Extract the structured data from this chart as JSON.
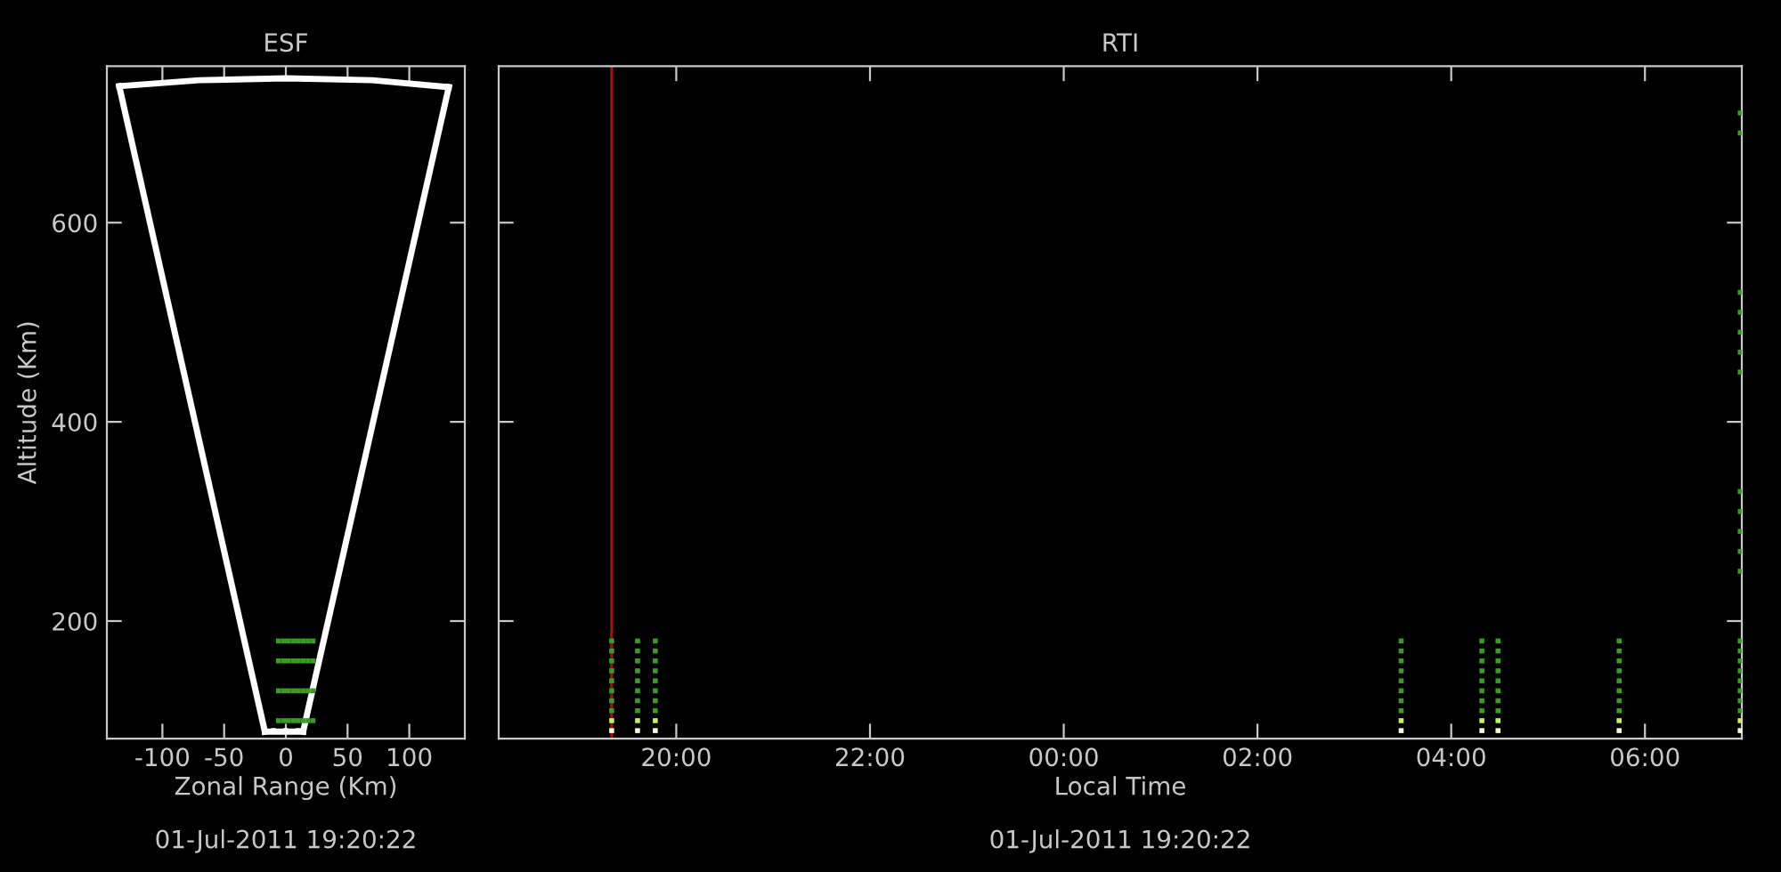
{
  "chart_data": [
    {
      "type": "scatter",
      "title": "ESF",
      "xlabel": "Zonal Range (Km)",
      "ylabel": "Altitude (Km)",
      "annotations": [
        "01-Jul-2011 19:20:22"
      ],
      "xlim": [
        -145,
        145
      ],
      "ylim": [
        82,
        757
      ],
      "xticks": [
        -100,
        -50,
        0,
        50,
        100
      ],
      "yticks": [
        200,
        400,
        600
      ],
      "grid": false,
      "legend": false,
      "marker": "square",
      "series": [
        {
          "type": "line",
          "marker": "none",
          "color": "#ffffff",
          "x": [
            -135,
            -17
          ],
          "values": [
            737,
            89
          ]
        },
        {
          "type": "line",
          "marker": "none",
          "color": "#ffffff",
          "x": [
            14,
            132
          ],
          "values": [
            89,
            736
          ]
        },
        {
          "type": "line",
          "marker": "none",
          "color": "#ffffff",
          "x": [
            -135,
            -70,
            0,
            70,
            132
          ],
          "values": [
            737,
            743,
            745,
            743,
            736
          ]
        },
        {
          "type": "line",
          "marker": "none",
          "color": "#ffffff",
          "x": [
            -17,
            14
          ],
          "values": [
            89,
            89
          ]
        },
        {
          "color": "#3c9a28",
          "x": [
            -6,
            -6,
            -6,
            -6,
            -2,
            -2,
            -2,
            -2,
            2,
            2,
            2,
            2,
            6,
            6,
            6,
            6,
            10,
            10,
            10,
            10,
            14,
            14,
            14,
            14,
            18,
            18,
            18,
            18,
            22,
            22,
            22,
            22
          ],
          "values": [
            100,
            130,
            160,
            180,
            100,
            130,
            160,
            180,
            100,
            130,
            160,
            180,
            100,
            130,
            160,
            180,
            100,
            130,
            160,
            180,
            100,
            130,
            160,
            180,
            100,
            130,
            160,
            180,
            100,
            130,
            160,
            180
          ]
        },
        {
          "color": "#ffffff",
          "x": [
            -10,
            0,
            10
          ],
          "values": [
            90,
            90,
            90
          ]
        }
      ]
    },
    {
      "type": "scatter",
      "title": "RTI",
      "xlabel": "Local Time",
      "annotations": [
        "01-Jul-2011 19:20:22"
      ],
      "xlim": [
        "2011-07-01T18:10",
        "2011-07-02T07:00"
      ],
      "ylim": [
        82,
        757
      ],
      "xticks": [
        {
          "value": "2011-07-01T20:00",
          "label": "20:00"
        },
        {
          "value": "2011-07-01T22:00",
          "label": "22:00"
        },
        {
          "value": "2011-07-02T00:00",
          "label": "00:00"
        },
        {
          "value": "2011-07-02T02:00",
          "label": "02:00"
        },
        {
          "value": "2011-07-02T04:00",
          "label": "04:00"
        },
        {
          "value": "2011-07-02T06:00",
          "label": "06:00"
        }
      ],
      "yticks": [
        200,
        400,
        600
      ],
      "tick_labels": "x",
      "grid": false,
      "legend": false,
      "marker": "square",
      "ref_lines": [
        {
          "axis": "x",
          "value": "2011-07-01T19:20",
          "color": "#a01010"
        }
      ],
      "series": [
        {
          "color": "#f0ffd0",
          "x": [
            "2011-07-01T19:20",
            "2011-07-01T19:36",
            "2011-07-01T19:47",
            "2011-07-02T03:29",
            "2011-07-02T04:19",
            "2011-07-02T04:29",
            "2011-07-02T05:44",
            "2011-07-02T06:59"
          ],
          "values": [
            90,
            90,
            90,
            90,
            90,
            90,
            90,
            90
          ]
        },
        {
          "color": "#c8f060",
          "x": [
            "2011-07-01T19:20",
            "2011-07-01T19:36",
            "2011-07-01T19:47",
            "2011-07-02T03:29",
            "2011-07-02T04:19",
            "2011-07-02T04:29",
            "2011-07-02T05:44",
            "2011-07-02T06:59"
          ],
          "values": [
            100,
            100,
            100,
            100,
            100,
            100,
            100,
            100
          ]
        },
        {
          "color": "#3c9a28",
          "x": [
            "2011-07-01T19:20",
            "2011-07-01T19:20",
            "2011-07-01T19:20",
            "2011-07-01T19:20",
            "2011-07-01T19:20",
            "2011-07-01T19:20",
            "2011-07-01T19:20",
            "2011-07-01T19:20"
          ],
          "values": [
            110,
            120,
            130,
            140,
            150,
            160,
            170,
            180
          ]
        },
        {
          "color": "#3c9a28",
          "x": [
            "2011-07-01T19:36",
            "2011-07-01T19:36",
            "2011-07-01T19:36",
            "2011-07-01T19:36",
            "2011-07-01T19:36",
            "2011-07-01T19:36",
            "2011-07-01T19:36",
            "2011-07-01T19:36"
          ],
          "values": [
            110,
            120,
            130,
            140,
            150,
            160,
            170,
            180
          ]
        },
        {
          "color": "#3c9a28",
          "x": [
            "2011-07-01T19:47",
            "2011-07-01T19:47",
            "2011-07-01T19:47",
            "2011-07-01T19:47",
            "2011-07-01T19:47",
            "2011-07-01T19:47",
            "2011-07-01T19:47",
            "2011-07-01T19:47"
          ],
          "values": [
            110,
            120,
            130,
            140,
            150,
            160,
            170,
            180
          ]
        },
        {
          "color": "#3c9a28",
          "x": [
            "2011-07-02T03:29",
            "2011-07-02T03:29",
            "2011-07-02T03:29",
            "2011-07-02T03:29",
            "2011-07-02T03:29",
            "2011-07-02T03:29",
            "2011-07-02T03:29",
            "2011-07-02T03:29"
          ],
          "values": [
            110,
            120,
            130,
            140,
            150,
            160,
            170,
            180
          ]
        },
        {
          "color": "#3c9a28",
          "x": [
            "2011-07-02T04:19",
            "2011-07-02T04:19",
            "2011-07-02T04:19",
            "2011-07-02T04:19",
            "2011-07-02T04:19",
            "2011-07-02T04:19",
            "2011-07-02T04:19",
            "2011-07-02T04:19"
          ],
          "values": [
            110,
            120,
            130,
            140,
            150,
            160,
            170,
            180
          ]
        },
        {
          "color": "#3c9a28",
          "x": [
            "2011-07-02T04:29",
            "2011-07-02T04:29",
            "2011-07-02T04:29",
            "2011-07-02T04:29",
            "2011-07-02T04:29",
            "2011-07-02T04:29",
            "2011-07-02T04:29",
            "2011-07-02T04:29"
          ],
          "values": [
            110,
            120,
            130,
            140,
            150,
            160,
            170,
            180
          ]
        },
        {
          "color": "#3c9a28",
          "x": [
            "2011-07-02T05:44",
            "2011-07-02T05:44",
            "2011-07-02T05:44",
            "2011-07-02T05:44",
            "2011-07-02T05:44",
            "2011-07-02T05:44",
            "2011-07-02T05:44",
            "2011-07-02T05:44"
          ],
          "values": [
            110,
            120,
            130,
            140,
            150,
            160,
            170,
            180
          ]
        },
        {
          "color": "#3c9a28",
          "x": [
            "2011-07-02T06:59",
            "2011-07-02T06:59",
            "2011-07-02T06:59",
            "2011-07-02T06:59",
            "2011-07-02T06:59",
            "2011-07-02T06:59",
            "2011-07-02T06:59",
            "2011-07-02T06:59",
            "2011-07-02T06:59",
            "2011-07-02T06:59",
            "2011-07-02T06:59",
            "2011-07-02T06:59",
            "2011-07-02T06:59",
            "2011-07-02T06:59",
            "2011-07-02T06:59",
            "2011-07-02T06:59",
            "2011-07-02T06:59",
            "2011-07-02T06:59",
            "2011-07-02T06:59",
            "2011-07-02T06:59"
          ],
          "values": [
            110,
            120,
            130,
            140,
            150,
            160,
            170,
            180,
            250,
            270,
            290,
            310,
            330,
            450,
            470,
            490,
            510,
            530,
            690,
            710
          ]
        }
      ]
    }
  ]
}
